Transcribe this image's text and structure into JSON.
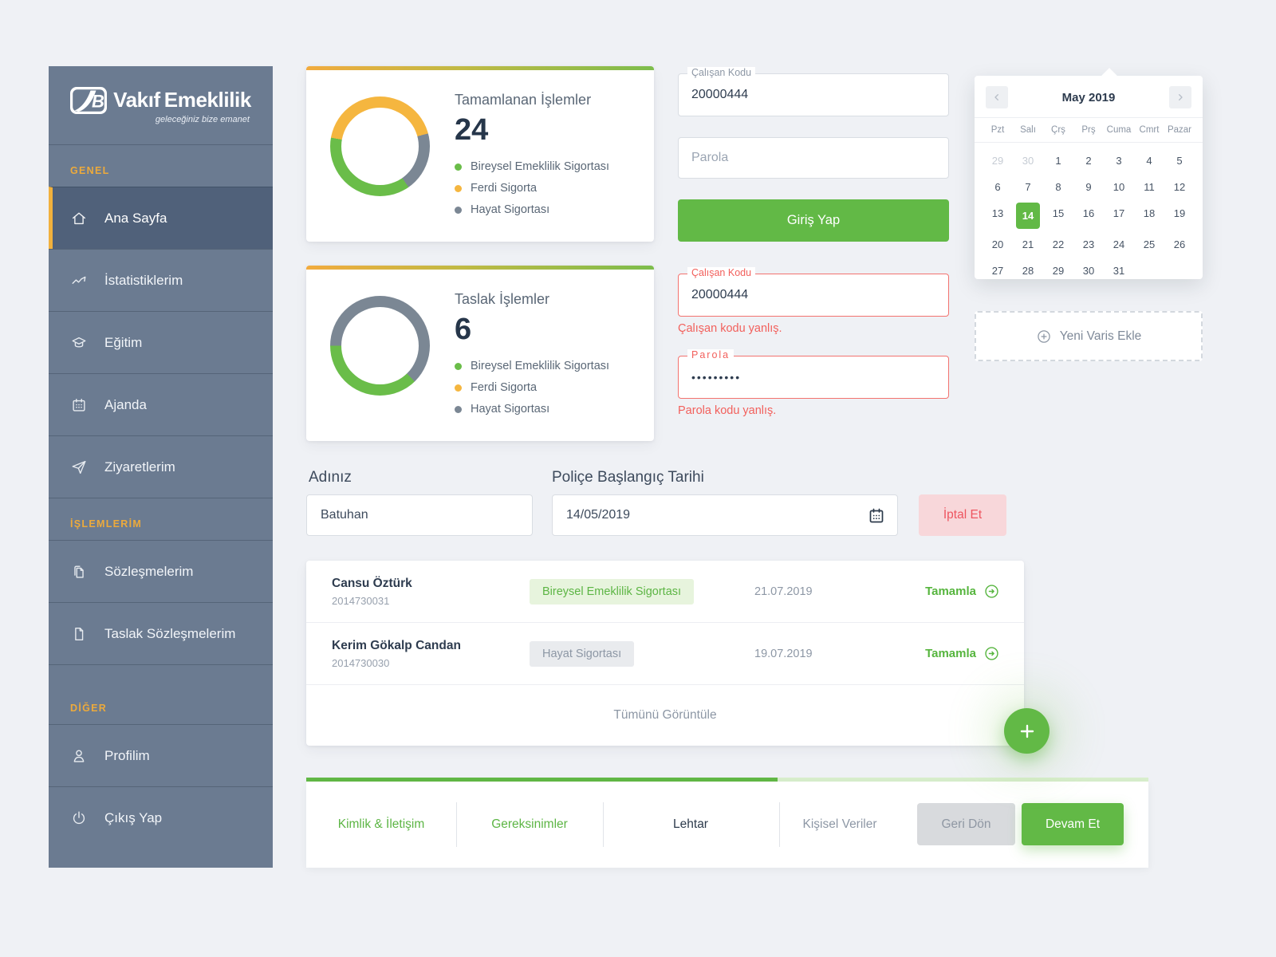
{
  "colors": {
    "green": "#62b946",
    "light_green_badge": "#e7f4dd",
    "yellow": "#f5b63f",
    "gray": "#7b8794",
    "sidebar": "#6b7b91",
    "accent_orange": "#ecaa3c",
    "error_red": "#f2605c",
    "cancel_pink_bg": "#f8d7da",
    "dark_text": "#2c3a4b",
    "muted_text": "#8d97a5"
  },
  "sidebar": {
    "brand": {
      "name_left": "Vakıf",
      "name_right": "Emeklilik",
      "tagline": "geleceğiniz bize emanet"
    },
    "sections": [
      {
        "label": "GENEL",
        "items": [
          {
            "label": "Ana Sayfa",
            "icon": "home",
            "active": true
          },
          {
            "label": "İstatistiklerim",
            "icon": "stats"
          },
          {
            "label": "Eğitim",
            "icon": "education"
          },
          {
            "label": "Ajanda",
            "icon": "agenda"
          },
          {
            "label": "Ziyaretlerim",
            "icon": "visits"
          }
        ]
      },
      {
        "label": "İŞLEMLERİM",
        "items": [
          {
            "label": "Sözleşmelerim",
            "icon": "contracts"
          },
          {
            "label": "Taslak Sözleşmelerim",
            "icon": "draft"
          }
        ]
      },
      {
        "label": "DİĞER",
        "items": [
          {
            "label": "Profilim",
            "icon": "profile"
          },
          {
            "label": "Çıkış Yap",
            "icon": "logout"
          }
        ]
      }
    ]
  },
  "chart_data": [
    {
      "type": "donut",
      "title": "Tamamlanan İşlemler",
      "total": "24",
      "rotation": 280,
      "segments": [
        {
          "label": "Ferdi Sigorta",
          "color": "#f5b63f",
          "sweep": 155
        },
        {
          "label": "Hayat Sigortası",
          "color": "#7b8794",
          "sweep": 70
        },
        {
          "label": "Bireysel Emeklilik Sigortası",
          "color": "#6abd49",
          "sweep": 135
        }
      ],
      "legend": [
        {
          "label": "Bireysel Emeklilik Sigortası",
          "color": "#6abd49"
        },
        {
          "label": "Ferdi Sigorta",
          "color": "#f5b63f"
        },
        {
          "label": "Hayat Sigortası",
          "color": "#7b8794"
        }
      ]
    },
    {
      "type": "donut",
      "title": "Taslak İşlemler",
      "total": "6",
      "rotation": 270,
      "segments": [
        {
          "label": "Hayat Sigortası",
          "color": "#7b8794",
          "sweep": 226
        },
        {
          "label": "Bireysel Emeklilik Sigortası",
          "color": "#6abd49",
          "sweep": 134
        }
      ],
      "legend": [
        {
          "label": "Bireysel Emeklilik Sigortası",
          "color": "#6abd49"
        },
        {
          "label": "Ferdi Sigorta",
          "color": "#f5b63f"
        },
        {
          "label": "Hayat Sigortası",
          "color": "#7b8794"
        }
      ]
    }
  ],
  "login": {
    "employee_code": {
      "label": "Çalışan Kodu",
      "value": "20000444"
    },
    "password": {
      "placeholder": "Parola"
    },
    "submit_label": "Giriş Yap",
    "employee_code_error": {
      "label": "Çalışan Kodu",
      "value": "20000444",
      "message": "Çalışan kodu yanlış."
    },
    "password_error": {
      "label": "Parola",
      "value": "•••••••••",
      "message": "Parola kodu yanlış."
    }
  },
  "calendar": {
    "title": "May 2019",
    "weekdays": [
      "Pzt",
      "Salı",
      "Çrş",
      "Prş",
      "Cuma",
      "Cmrt",
      "Pazar"
    ],
    "selected_day": "14",
    "days": [
      {
        "d": "29",
        "muted": true
      },
      {
        "d": "30",
        "muted": true
      },
      {
        "d": "1"
      },
      {
        "d": "2"
      },
      {
        "d": "3"
      },
      {
        "d": "4"
      },
      {
        "d": "5"
      },
      {
        "d": "6"
      },
      {
        "d": "7"
      },
      {
        "d": "8"
      },
      {
        "d": "9"
      },
      {
        "d": "10"
      },
      {
        "d": "11"
      },
      {
        "d": "12"
      },
      {
        "d": "13"
      },
      {
        "d": "14",
        "selected": true
      },
      {
        "d": "15"
      },
      {
        "d": "16"
      },
      {
        "d": "17"
      },
      {
        "d": "18"
      },
      {
        "d": "19"
      },
      {
        "d": "20"
      },
      {
        "d": "21"
      },
      {
        "d": "22"
      },
      {
        "d": "23"
      },
      {
        "d": "24"
      },
      {
        "d": "25"
      },
      {
        "d": "26"
      },
      {
        "d": "27"
      },
      {
        "d": "28"
      },
      {
        "d": "29"
      },
      {
        "d": "30"
      },
      {
        "d": "31"
      }
    ]
  },
  "add_heir": {
    "label": "Yeni Varis Ekle"
  },
  "form": {
    "name": {
      "label": "Adınız",
      "value": "Batuhan"
    },
    "policy_date": {
      "label": "Poliçe Başlangıç Tarihi",
      "value": "14/05/2019"
    },
    "cancel_label": "İptal Et"
  },
  "transactions": {
    "rows": [
      {
        "name": "Cansu Öztürk",
        "id": "2014730031",
        "badge": "Bireysel Emeklilik Sigortası",
        "badge_style": "green",
        "date": "21.07.2019",
        "action": "Tamamla"
      },
      {
        "name": "Kerim Gökalp Candan",
        "id": "2014730030",
        "badge": "Hayat Sigortası",
        "badge_style": "gray",
        "date": "19.07.2019",
        "action": "Tamamla"
      }
    ],
    "footer_label": "Tümünü Görüntüle"
  },
  "stepper": {
    "progress_pct": 56,
    "steps": [
      {
        "label": "Kimlik & İletişim",
        "state": "done"
      },
      {
        "label": "Gereksinimler",
        "state": "done"
      },
      {
        "label": "Lehtar",
        "state": "current"
      },
      {
        "label": "Kişisel Veriler",
        "state": "upcoming"
      }
    ],
    "back_label": "Geri Dön",
    "next_label": "Devam Et"
  }
}
